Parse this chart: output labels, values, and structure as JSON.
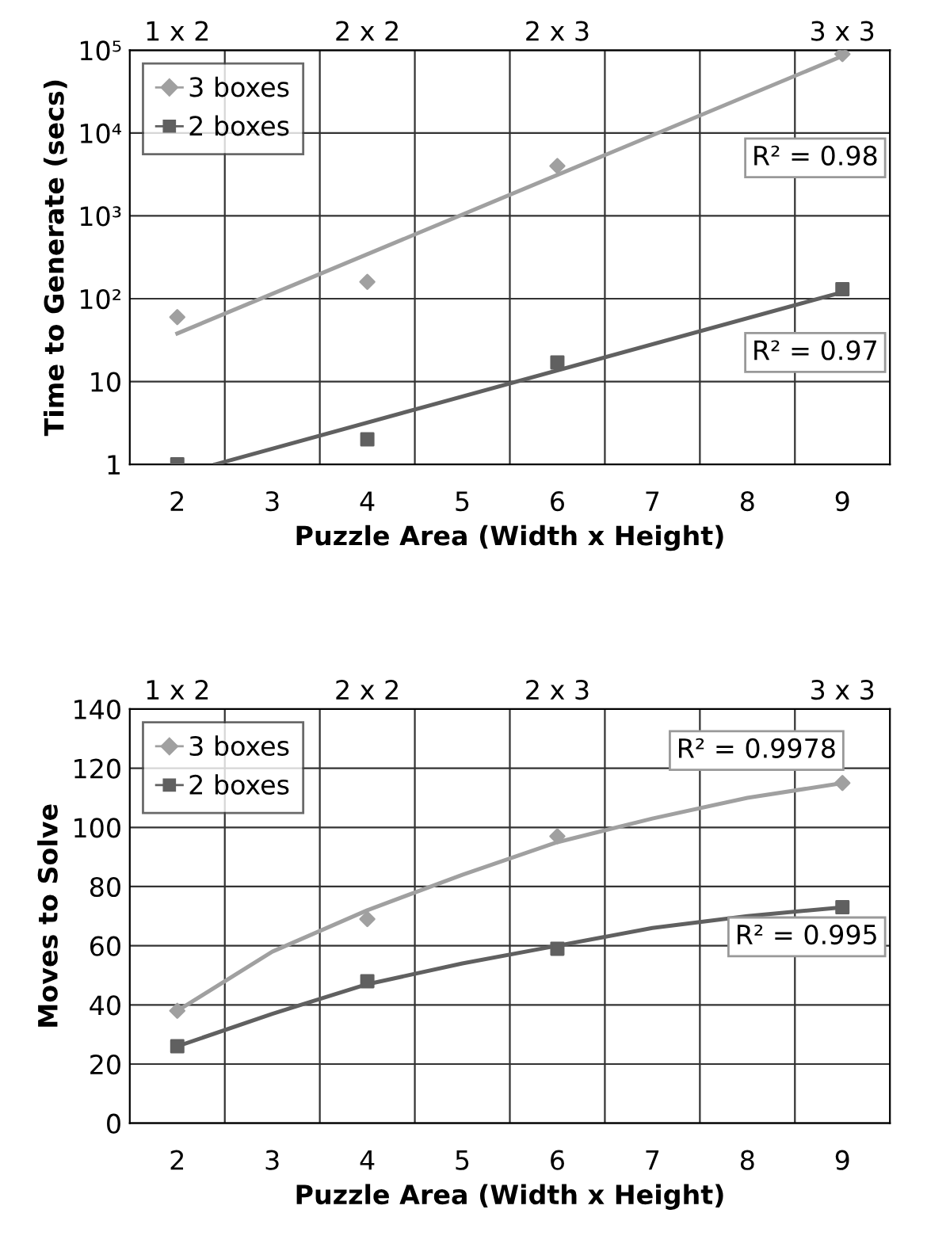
{
  "chart_data": [
    {
      "type": "scatter",
      "xlabel": "Puzzle Area (Width x Height)",
      "ylabel": "Time to Generate (secs)",
      "log": "y",
      "xlim": [
        1.5,
        9.5
      ],
      "xticks": [
        2,
        3,
        4,
        5,
        6,
        7,
        8,
        9,
        {
          "value": 2.5,
          "label": null
        },
        {
          "value": 3.5,
          "label": null
        },
        {
          "value": 4.5,
          "label": null
        },
        {
          "value": 5.5,
          "label": null
        },
        {
          "value": 6.5,
          "label": null
        },
        {
          "value": 7.5,
          "label": null
        },
        {
          "value": 8.5,
          "label": null
        }
      ],
      "ylim": [
        1,
        100000
      ],
      "yticks": [
        1,
        10,
        {
          "value": 100,
          "label": "10²"
        },
        {
          "value": 1000,
          "label": "10³"
        },
        {
          "value": 10000,
          "label": "10⁴"
        },
        {
          "value": 100000,
          "label": "10⁵"
        }
      ],
      "grid": true,
      "legend": "top left",
      "series": [
        {
          "name": "3 boxes",
          "marker": "diamond",
          "color": "#a0a0a0",
          "x": [
            2,
            4,
            6,
            9
          ],
          "values": [
            60,
            160,
            4000,
            90000
          ]
        },
        {
          "name": "2 boxes",
          "marker": "square",
          "color": "#606060",
          "x": [
            2,
            4,
            6,
            9
          ],
          "values": [
            1,
            2,
            17,
            130
          ]
        },
        {
          "type": "line",
          "color": "#a0a0a0",
          "x": [
            2,
            9
          ],
          "values": [
            38,
            85000
          ]
        },
        {
          "type": "line",
          "color": "#606060",
          "x": [
            2.4,
            9
          ],
          "values": [
            1,
            120
          ]
        }
      ],
      "annotations": [
        "1 x 2",
        "2 x 2",
        "2 x 3",
        "3 x 3",
        "R² = 0.98",
        "R² = 0.97"
      ]
    },
    {
      "type": "scatter",
      "xlabel": "Puzzle Area (Width x Height)",
      "ylabel": "Moves to Solve",
      "xlim": [
        1.5,
        9.5
      ],
      "xticks": [
        2,
        3,
        4,
        5,
        6,
        7,
        8,
        9,
        {
          "value": 2.5,
          "label": null
        },
        {
          "value": 3.5,
          "label": null
        },
        {
          "value": 4.5,
          "label": null
        },
        {
          "value": 5.5,
          "label": null
        },
        {
          "value": 6.5,
          "label": null
        },
        {
          "value": 7.5,
          "label": null
        },
        {
          "value": 8.5,
          "label": null
        }
      ],
      "ylim": [
        0,
        140
      ],
      "yticks": [
        0,
        20,
        40,
        60,
        80,
        100,
        120,
        140
      ],
      "grid": true,
      "legend": "top left",
      "series": [
        {
          "name": "3 boxes",
          "marker": "diamond",
          "color": "#a0a0a0",
          "x": [
            2,
            4,
            6,
            9
          ],
          "values": [
            38,
            69,
            97,
            115
          ]
        },
        {
          "name": "2 boxes",
          "marker": "square",
          "color": "#606060",
          "x": [
            2,
            4,
            6,
            9
          ],
          "values": [
            26,
            48,
            59,
            73
          ]
        },
        {
          "type": "line",
          "color": "#a0a0a0",
          "x": [
            2,
            3,
            4,
            5,
            6,
            7,
            8,
            9
          ],
          "values": [
            38,
            58,
            72,
            84,
            95,
            103,
            110,
            115
          ]
        },
        {
          "type": "line",
          "color": "#606060",
          "x": [
            2,
            3,
            4,
            5,
            6,
            7,
            8,
            9
          ],
          "values": [
            26,
            37,
            47,
            54,
            60,
            66,
            70,
            73
          ]
        }
      ],
      "annotations": [
        "1 x 2",
        "2 x 2",
        "2 x 3",
        "3 x 3",
        "R² = 0.9978",
        "R² = 0.995"
      ]
    }
  ]
}
